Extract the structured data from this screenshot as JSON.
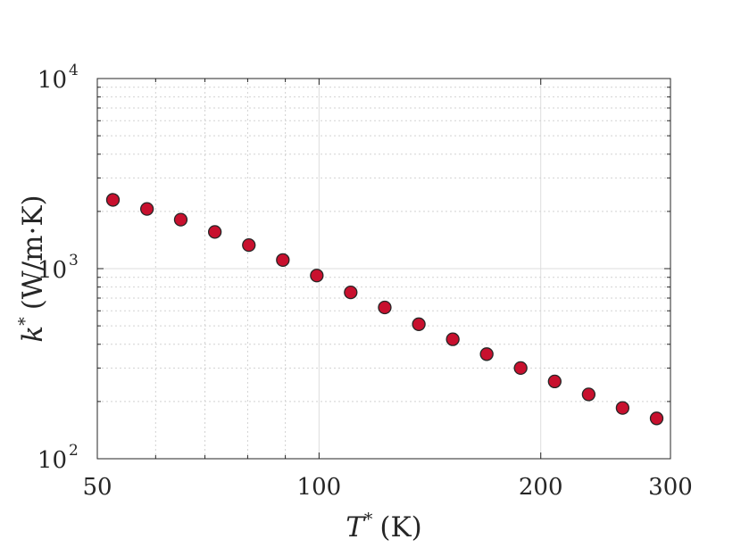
{
  "chart_data": {
    "type": "scatter",
    "title": "",
    "xlabel": {
      "symbol": "T",
      "sup": "*",
      "unit": "(K)"
    },
    "ylabel": {
      "symbol": "k",
      "sup": "*",
      "unit": "(W/m·K)"
    },
    "xscale": "log",
    "yscale": "log",
    "xlim": [
      50,
      300
    ],
    "ylim": [
      100,
      10000
    ],
    "grid": true,
    "minor_grid": true,
    "legend": "none",
    "xticks": [
      {
        "value": 50,
        "label": "50"
      },
      {
        "value": 100,
        "label": "100"
      },
      {
        "value": 200,
        "label": "200"
      },
      {
        "value": 300,
        "label": "300"
      }
    ],
    "yticks": [
      {
        "value": 100,
        "base": "10",
        "exp": "2"
      },
      {
        "value": 1000,
        "base": "10",
        "exp": "3"
      },
      {
        "value": 10000,
        "base": "10",
        "exp": "4"
      }
    ],
    "marker_color": "#C8102E",
    "marker_edge_color": "#262626",
    "x": [
      52.5,
      58.4,
      64.9,
      72.2,
      80.3,
      89.3,
      99.3,
      110.4,
      122.8,
      136.6,
      151.9,
      168.9,
      187.8,
      208.9,
      232.3,
      258.3,
      287.3
    ],
    "y": [
      2300,
      2060,
      1810,
      1560,
      1330,
      1110,
      920,
      750,
      625,
      510,
      425,
      355,
      300,
      255,
      218,
      185,
      163
    ]
  }
}
